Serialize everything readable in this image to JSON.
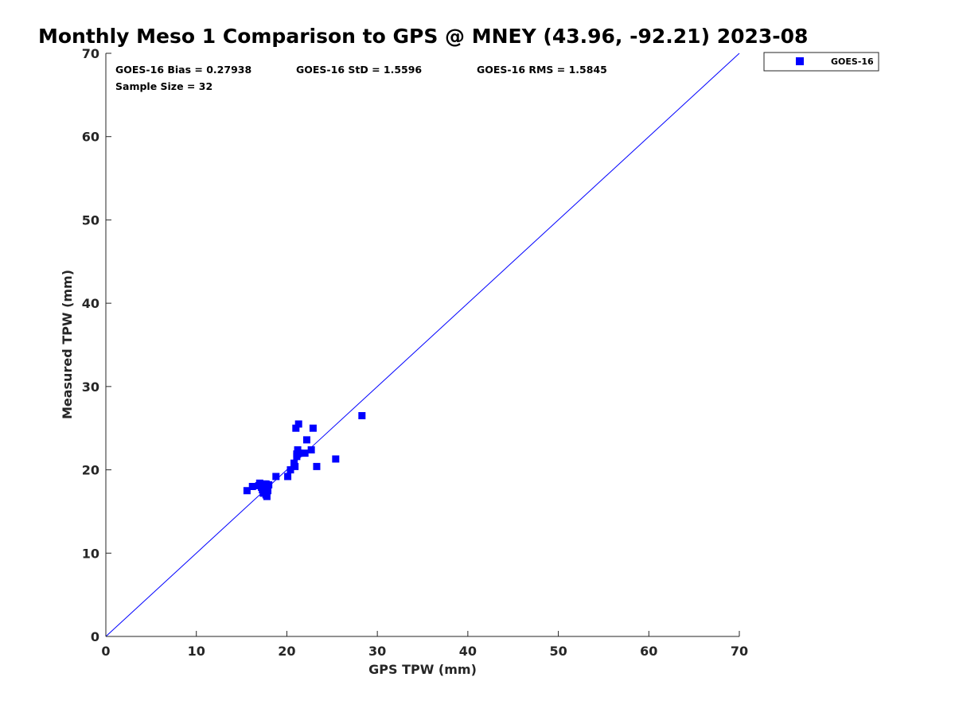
{
  "chart_data": {
    "type": "scatter",
    "title": "Monthly Meso 1 Comparison to GPS @ MNEY (43.96, -92.21) 2023-08",
    "xlabel": "GPS TPW (mm)",
    "ylabel": "Measured TPW (mm)",
    "xlim": [
      0,
      70
    ],
    "ylim": [
      0,
      70
    ],
    "xticks": [
      0,
      10,
      20,
      30,
      40,
      50,
      60,
      70
    ],
    "yticks": [
      0,
      10,
      20,
      30,
      40,
      50,
      60,
      70
    ],
    "grid": false,
    "legend_position": "outside-top-right",
    "reference_line": {
      "x": [
        0,
        70
      ],
      "y": [
        0,
        70
      ],
      "color": "#0000ff"
    },
    "stats": {
      "bias": "GOES-16 Bias = 0.27938",
      "std": "GOES-16 StD = 1.5596",
      "rms": "GOES-16 RMS = 1.5845",
      "sample": "Sample Size = 32"
    },
    "series": [
      {
        "name": "GOES-16",
        "color": "#0000ff",
        "marker": "square",
        "points": [
          [
            15.6,
            17.5
          ],
          [
            16.2,
            18.0
          ],
          [
            16.9,
            18.1
          ],
          [
            17.0,
            18.4
          ],
          [
            17.3,
            17.6
          ],
          [
            17.4,
            17.2
          ],
          [
            17.5,
            18.3
          ],
          [
            17.6,
            17.8
          ],
          [
            17.7,
            17.0
          ],
          [
            17.8,
            16.8
          ],
          [
            17.9,
            17.5
          ],
          [
            18.0,
            18.2
          ],
          [
            18.8,
            19.2
          ],
          [
            20.1,
            19.2
          ],
          [
            20.4,
            20.0
          ],
          [
            20.8,
            20.8
          ],
          [
            20.9,
            20.4
          ],
          [
            21.0,
            25.0
          ],
          [
            21.1,
            21.6
          ],
          [
            21.2,
            22.4
          ],
          [
            21.3,
            25.5
          ],
          [
            21.4,
            22.0
          ],
          [
            22.0,
            22.0
          ],
          [
            22.2,
            23.6
          ],
          [
            22.7,
            22.4
          ],
          [
            22.9,
            25.0
          ],
          [
            23.3,
            20.4
          ],
          [
            25.4,
            21.3
          ],
          [
            28.3,
            26.5
          ],
          [
            17.2,
            17.9
          ],
          [
            17.7,
            18.3
          ],
          [
            21.1,
            21.9
          ]
        ]
      }
    ]
  }
}
